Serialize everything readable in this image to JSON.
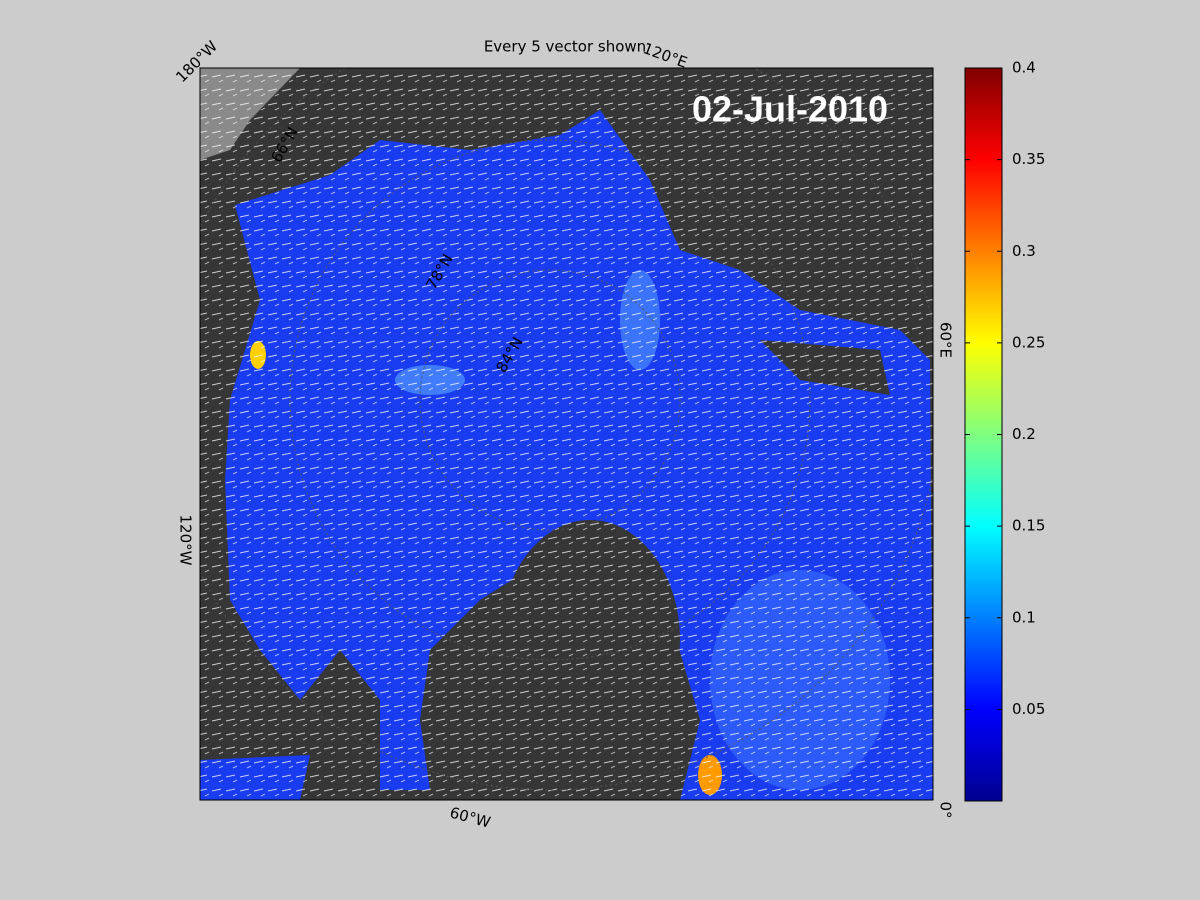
{
  "title": "Every 5 vector shown",
  "date_label": "02-Jul-2010",
  "map": {
    "longitude_labels": [
      "180°W",
      "120°E",
      "60°E",
      "0°",
      "60°W",
      "120°W"
    ],
    "latitude_labels": [
      "66°N",
      "78°N",
      "84°N"
    ]
  },
  "colorbar": {
    "lim": [
      0,
      0.4
    ],
    "ticks": [
      0.05,
      0.1,
      0.15,
      0.2,
      0.25,
      0.3,
      0.35,
      0.4
    ]
  }
}
